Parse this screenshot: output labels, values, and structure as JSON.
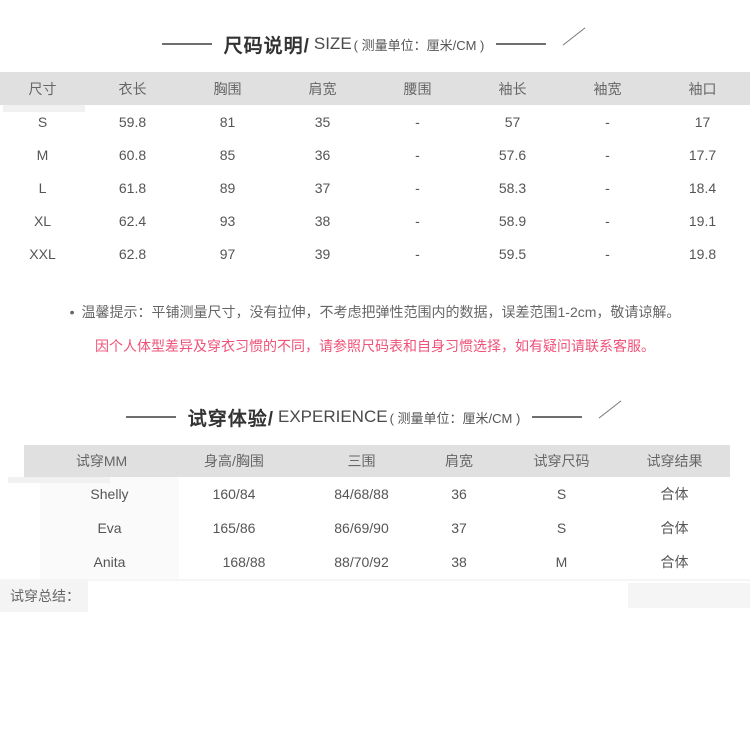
{
  "size_section": {
    "title_cn": "尺码说明/",
    "title_en": "SIZE",
    "unit": "( 测量单位：厘米/CM )",
    "table": {
      "headers": [
        "尺寸",
        "衣长",
        "胸围",
        "肩宽",
        "腰围",
        "袖长",
        "袖宽",
        "袖口"
      ],
      "rows": [
        [
          "S",
          "59.8",
          "81",
          "35",
          "-",
          "57",
          "-",
          "17"
        ],
        [
          "M",
          "60.8",
          "85",
          "36",
          "-",
          "57.6",
          "-",
          "17.7"
        ],
        [
          "L",
          "61.8",
          "89",
          "37",
          "-",
          "58.3",
          "-",
          "18.4"
        ],
        [
          "XL",
          "62.4",
          "93",
          "38",
          "-",
          "58.9",
          "-",
          "19.1"
        ],
        [
          "XXL",
          "62.8",
          "97",
          "39",
          "-",
          "59.5",
          "-",
          "19.8"
        ]
      ]
    },
    "tip_bullet": "•",
    "tip_gray": "温馨提示：平铺测量尺寸，没有拉伸，不考虑把弹性范围内的数据，误差范围1-2cm，敬请谅解。",
    "tip_pink": "因个人体型差异及穿衣习惯的不同，请参照尺码表和自身习惯选择，如有疑问请联系客服。"
  },
  "fit_section": {
    "title_cn": "试穿体验/",
    "title_en": "EXPERIENCE",
    "unit": "( 测量单位：厘米/CM )",
    "table": {
      "headers": [
        "试穿MM",
        "身高/胸围",
        "三围",
        "肩宽",
        "试穿尺码",
        "试穿结果"
      ],
      "rows": [
        [
          "Shelly",
          "160/84",
          "84/68/88",
          "36",
          "S",
          "合体"
        ],
        [
          "Eva",
          "165/86",
          "86/69/90",
          "37",
          "S",
          "合体"
        ],
        [
          "Anita",
          "168/88",
          "88/70/92",
          "38",
          "M",
          "合体"
        ]
      ]
    },
    "summary_label": "试穿总结："
  },
  "colors": {
    "header_bg": "#e0e0e0",
    "accent_pink": "#ee5278",
    "body_text": "#555555",
    "strip_bg": "#f4f4f4"
  }
}
